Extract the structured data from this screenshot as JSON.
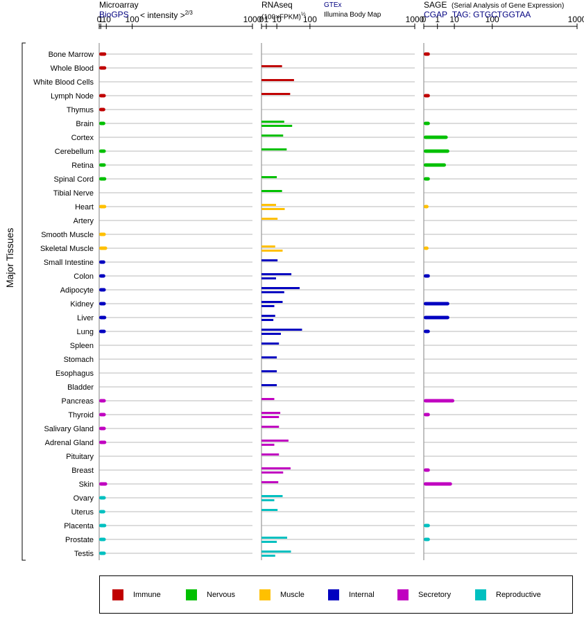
{
  "panels": {
    "microarray": {
      "title": "Microarray",
      "source": "BioGPS",
      "measure": "< intensity >",
      "exponent": "2/3"
    },
    "rnaseq": {
      "title": "RNAseq",
      "unit": "(100×FPKM)",
      "exponent": "½",
      "source1": "GTEx",
      "source2": "Illumina Body Map"
    },
    "sage": {
      "title": "SAGE",
      "subtitle": "(Serial Analysis of Gene Expression)",
      "source": "CGAP",
      "tag": "TAG: GTGCTGGTAA"
    }
  },
  "y_axis_label": "Major Tissues",
  "chart_data": {
    "type": "bar",
    "x_ticks": [
      "0",
      "1",
      "10",
      "100",
      "1000"
    ],
    "x_scale": "power (2/3 for microarray, 1/2 for RNAseq)",
    "xlim": [
      0,
      1000
    ],
    "categories": [
      "Bone Marrow",
      "Whole Blood",
      "White Blood Cells",
      "Lymph Node",
      "Thymus",
      "Brain",
      "Cortex",
      "Cerebellum",
      "Retina",
      "Spinal Cord",
      "Tibial Nerve",
      "Heart",
      "Artery",
      "Smooth Muscle",
      "Skeletal Muscle",
      "Small Intestine",
      "Colon",
      "Adipocyte",
      "Kidney",
      "Liver",
      "Lung",
      "Spleen",
      "Stomach",
      "Esophagus",
      "Bladder",
      "Pancreas",
      "Thyroid",
      "Salivary Gland",
      "Adrenal Gland",
      "Pituitary",
      "Breast",
      "Skin",
      "Ovary",
      "Uterus",
      "Placenta",
      "Prostate",
      "Testis"
    ],
    "groups": [
      "Immune",
      "Immune",
      "Immune",
      "Immune",
      "Immune",
      "Nervous",
      "Nervous",
      "Nervous",
      "Nervous",
      "Nervous",
      "Nervous",
      "Muscle",
      "Muscle",
      "Muscle",
      "Muscle",
      "Internal",
      "Internal",
      "Internal",
      "Internal",
      "Internal",
      "Internal",
      "Internal",
      "Internal",
      "Internal",
      "Internal",
      "Secretory",
      "Secretory",
      "Secretory",
      "Secretory",
      "Secretory",
      "Secretory",
      "Secretory",
      "Reproductive",
      "Reproductive",
      "Reproductive",
      "Reproductive",
      "Reproductive"
    ],
    "series": [
      {
        "name": "Microarray",
        "values": [
          10,
          10,
          null,
          9,
          8,
          8,
          null,
          9,
          9,
          10,
          null,
          10,
          null,
          9,
          12,
          8,
          8,
          9,
          9,
          10,
          9,
          null,
          null,
          null,
          null,
          9,
          9,
          9,
          10,
          null,
          null,
          12,
          9,
          8,
          10,
          9,
          9
        ]
      },
      {
        "name": "GTEx",
        "values": [
          null,
          null,
          null,
          null,
          null,
          22,
          null,
          null,
          null,
          null,
          null,
          9,
          null,
          null,
          8,
          null,
          null,
          null,
          null,
          null,
          null,
          null,
          null,
          null,
          null,
          null,
          null,
          null,
          null,
          null,
          null,
          null,
          null,
          null,
          null,
          null,
          null
        ]
      },
      {
        "name": "Illumina Body Map",
        "values": [
          null,
          18,
          45,
          35,
          null,
          40,
          20,
          27,
          null,
          10,
          18,
          23,
          11,
          null,
          19,
          11,
          38,
          62,
          19,
          8,
          70,
          13,
          10,
          10,
          10,
          7,
          15,
          13,
          31,
          13,
          36,
          12,
          19,
          11,
          null,
          28,
          37
        ]
      },
      {
        "name": "GTEx-2",
        "values": [
          null,
          null,
          null,
          null,
          null,
          null,
          null,
          null,
          null,
          null,
          null,
          null,
          null,
          null,
          null,
          null,
          9,
          22,
          7,
          6,
          16,
          null,
          null,
          null,
          null,
          null,
          13,
          null,
          7,
          null,
          20,
          null,
          7,
          null,
          null,
          10,
          8
        ]
      },
      {
        "name": "SAGE",
        "values": [
          0.1,
          null,
          null,
          0.1,
          null,
          0.1,
          5,
          6,
          4,
          0.1,
          null,
          0.05,
          null,
          null,
          0.05,
          null,
          0.1,
          null,
          6,
          6,
          0.1,
          null,
          null,
          null,
          null,
          10,
          0.1,
          null,
          null,
          null,
          0.1,
          8,
          null,
          null,
          0.1,
          0.1,
          null
        ]
      }
    ]
  },
  "legend": [
    {
      "label": "Immune",
      "color": "#c00000"
    },
    {
      "label": "Nervous",
      "color": "#00c000"
    },
    {
      "label": "Muscle",
      "color": "#ffc000"
    },
    {
      "label": "Internal",
      "color": "#0000c0"
    },
    {
      "label": "Secretory",
      "color": "#c000c0"
    },
    {
      "label": "Reproductive",
      "color": "#00c0c0"
    }
  ]
}
